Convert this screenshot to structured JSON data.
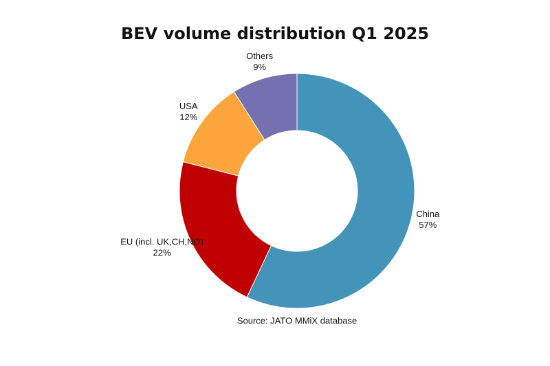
{
  "chart_data": {
    "type": "donut",
    "title": "BEV volume distribution Q1 2025",
    "categories": [
      "China",
      "EU (incl. UK,CH,NO)",
      "USA",
      "Others"
    ],
    "values": [
      57,
      22,
      12,
      9
    ],
    "value_labels": [
      "57%",
      "22%",
      "12%",
      "9%"
    ],
    "colors": [
      "#4493b8",
      "#c00000",
      "#fba53c",
      "#7570b0"
    ],
    "source": "Source: JATO MMiX database"
  }
}
